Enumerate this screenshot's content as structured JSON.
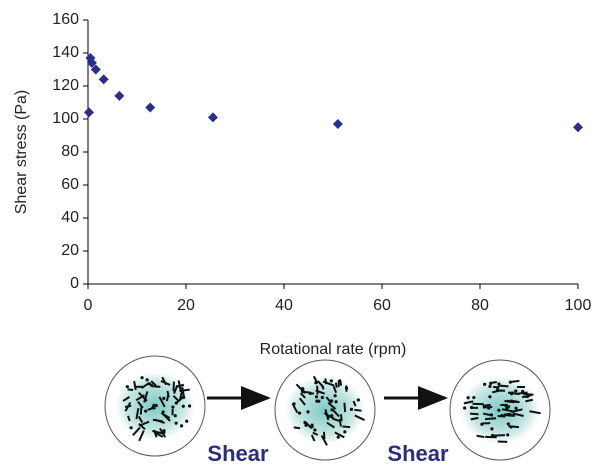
{
  "chart_data": {
    "type": "scatter",
    "x_label": "Rotational rate (rpm)",
    "y_label": "Shear stress (Pa)",
    "series": [
      {
        "color": "#2b2e8a",
        "x": [
          0.2,
          0.5,
          0.8,
          1.6,
          3.2,
          6.4,
          12.7,
          25.5,
          51,
          100
        ],
        "values": [
          104,
          137,
          134,
          130,
          124,
          114,
          107,
          101,
          97,
          95
        ]
      }
    ],
    "xlim": [
      0,
      100
    ],
    "xticks": [
      0,
      20,
      40,
      60,
      80,
      100
    ],
    "ylim": [
      0,
      160
    ],
    "yticks": [
      0,
      20,
      40,
      60,
      80,
      100,
      120,
      140,
      160
    ],
    "grid": false
  },
  "diagram": {
    "labels": [
      "Shear",
      "Shear"
    ]
  }
}
